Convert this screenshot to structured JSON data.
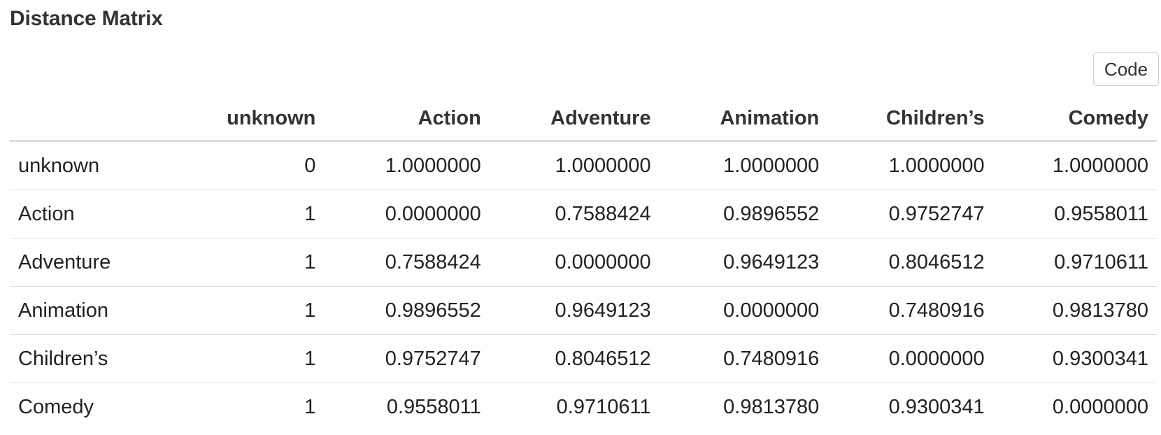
{
  "title": "Distance Matrix",
  "code_button_label": "Code",
  "table": {
    "columns": [
      "",
      "unknown",
      "Action",
      "Adventure",
      "Animation",
      "Children’s",
      "Comedy"
    ],
    "rows": [
      {
        "label": "unknown",
        "values": [
          "0",
          "1.0000000",
          "1.0000000",
          "1.0000000",
          "1.0000000",
          "1.0000000"
        ]
      },
      {
        "label": "Action",
        "values": [
          "1",
          "0.0000000",
          "0.7588424",
          "0.9896552",
          "0.9752747",
          "0.9558011"
        ]
      },
      {
        "label": "Adventure",
        "values": [
          "1",
          "0.7588424",
          "0.0000000",
          "0.9649123",
          "0.8046512",
          "0.9710611"
        ]
      },
      {
        "label": "Animation",
        "values": [
          "1",
          "0.9896552",
          "0.9649123",
          "0.0000000",
          "0.7480916",
          "0.9813780"
        ]
      },
      {
        "label": "Children’s",
        "values": [
          "1",
          "0.9752747",
          "0.8046512",
          "0.7480916",
          "0.0000000",
          "0.9300341"
        ]
      },
      {
        "label": "Comedy",
        "values": [
          "1",
          "0.9558011",
          "0.9710611",
          "0.9813780",
          "0.9300341",
          "0.0000000"
        ]
      }
    ]
  }
}
